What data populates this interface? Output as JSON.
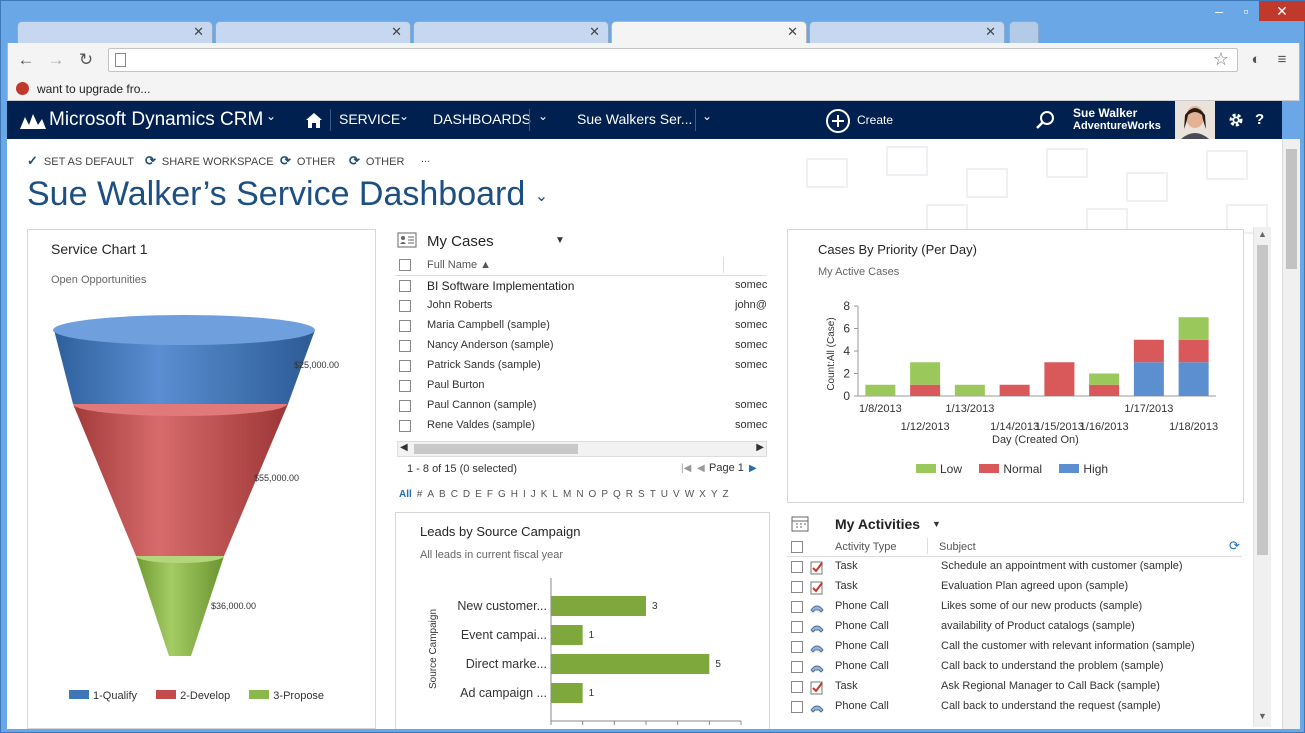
{
  "browser": {
    "tabs": [
      "",
      "",
      "",
      ""
    ],
    "bookmark": "want to upgrade fro..."
  },
  "nav": {
    "brand": "Microsoft Dynamics CRM",
    "service": "SERVICE",
    "dashboards": "DASHBOARDS",
    "current": "Sue Walkers Ser...",
    "create": "Create",
    "user_name": "Sue Walker",
    "user_org": "AdventureWorks"
  },
  "commands": [
    "SET AS DEFAULT",
    "SHARE WORKSPACE",
    "OTHER",
    "OTHER",
    "..."
  ],
  "page_title": "Sue Walker’s Service Dashboard",
  "service_chart": {
    "title": "Service Chart 1",
    "subtitle": "Open Opportunities",
    "stages": [
      {
        "label": "$25,000.00"
      },
      {
        "label": "$55,000.00"
      },
      {
        "label": "$36,000.00"
      }
    ],
    "legend": [
      {
        "name": "1-Qualify",
        "color": "#3e76b8"
      },
      {
        "name": "2-Develop",
        "color": "#c44b4b"
      },
      {
        "name": "3-Propose",
        "color": "#8ab84a"
      }
    ]
  },
  "my_cases": {
    "title": "My Cases",
    "column": "Full Name",
    "rows": [
      {
        "name": "BI Software Implementation",
        "email": "somec"
      },
      {
        "name": "John Roberts",
        "email": "john@"
      },
      {
        "name": "Maria Campbell (sample)",
        "email": "somec"
      },
      {
        "name": "Nancy Anderson (sample)",
        "email": "somec"
      },
      {
        "name": "Patrick Sands (sample)",
        "email": "somec"
      },
      {
        "name": "Paul Burton",
        "email": ""
      },
      {
        "name": "Paul Cannon (sample)",
        "email": "somec"
      },
      {
        "name": "Rene Valdes (sample)",
        "email": "somec"
      }
    ],
    "paging": "1 - 8 of 15 (0 selected)",
    "page": "Page 1",
    "alphabet": [
      "All",
      "#",
      "A",
      "B",
      "C",
      "D",
      "E",
      "F",
      "G",
      "H",
      "I",
      "J",
      "K",
      "L",
      "M",
      "N",
      "O",
      "P",
      "Q",
      "R",
      "S",
      "T",
      "U",
      "V",
      "W",
      "X",
      "Y",
      "Z"
    ]
  },
  "cases_by_priority": {
    "title": "Cases By Priority (Per Day)",
    "subtitle": "My Active Cases",
    "xlabel": "Day (Created On)",
    "ylabel": "Count:All (Case)",
    "row1": [
      "1/8/2013",
      "1/13/2013",
      "1/17/2013"
    ],
    "row2": [
      "1/12/2013",
      "1/14/2013",
      "1/15/2013",
      "1/16/2013",
      "1/18/2013"
    ],
    "legend": [
      {
        "name": "Low",
        "color": "#9bc85b"
      },
      {
        "name": "Normal",
        "color": "#d9595a"
      },
      {
        "name": "High",
        "color": "#5b8fd0"
      }
    ]
  },
  "leads": {
    "title": "Leads by Source Campaign",
    "subtitle": "All leads in current fiscal year",
    "ylabel": "Source Campaign"
  },
  "activities": {
    "title": "My Activities",
    "col_type": "Activity Type",
    "col_subject": "Subject",
    "rows": [
      {
        "type": "Task",
        "subject": "Schedule an appointment with customer (sample)",
        "icon": "task-icon"
      },
      {
        "type": "Task",
        "subject": "Evaluation Plan agreed upon (sample)",
        "icon": "task-icon"
      },
      {
        "type": "Phone Call",
        "subject": "Likes some of our new products (sample)",
        "icon": "phone-icon"
      },
      {
        "type": "Phone Call",
        "subject": "availability of Product catalogs (sample)",
        "icon": "phone-icon"
      },
      {
        "type": "Phone Call",
        "subject": "Call the customer with relevant information (sample)",
        "icon": "phone-icon"
      },
      {
        "type": "Phone Call",
        "subject": "Call back to understand the problem (sample)",
        "icon": "phone-icon"
      },
      {
        "type": "Task",
        "subject": "Ask Regional Manager to Call Back (sample)",
        "icon": "task-icon"
      },
      {
        "type": "Phone Call",
        "subject": "Call back to understand the request (sample)",
        "icon": "phone-icon"
      }
    ]
  },
  "chart_data": [
    {
      "type": "bar",
      "title": "Cases By Priority (Per Day)",
      "subtitle": "My Active Cases",
      "xlabel": "Day (Created On)",
      "ylabel": "Count:All (Case)",
      "categories": [
        "1/8/2013",
        "1/12/2013",
        "1/13/2013",
        "1/14/2013",
        "1/15/2013",
        "1/16/2013",
        "1/17/2013",
        "1/18/2013"
      ],
      "series": [
        {
          "name": "High",
          "values": [
            0,
            0,
            0,
            0,
            0,
            0,
            3,
            3
          ]
        },
        {
          "name": "Normal",
          "values": [
            0,
            1,
            0,
            1,
            3,
            1,
            2,
            2
          ]
        },
        {
          "name": "Low",
          "values": [
            1,
            2,
            1,
            0,
            0,
            1,
            0,
            2
          ]
        }
      ],
      "ylim": [
        0,
        8
      ],
      "yticks": [
        0,
        2,
        4,
        6,
        8
      ],
      "stacked": true,
      "legend": "bottom"
    },
    {
      "type": "bar",
      "orientation": "horizontal",
      "title": "Leads by Source Campaign",
      "subtitle": "All leads in current fiscal year",
      "ylabel": "Source Campaign",
      "categories": [
        "New customer...",
        "Event campai...",
        "Direct marke...",
        "Ad campaign ..."
      ],
      "values": [
        3,
        1,
        5,
        1
      ],
      "xlim": [
        0,
        6
      ]
    }
  ]
}
